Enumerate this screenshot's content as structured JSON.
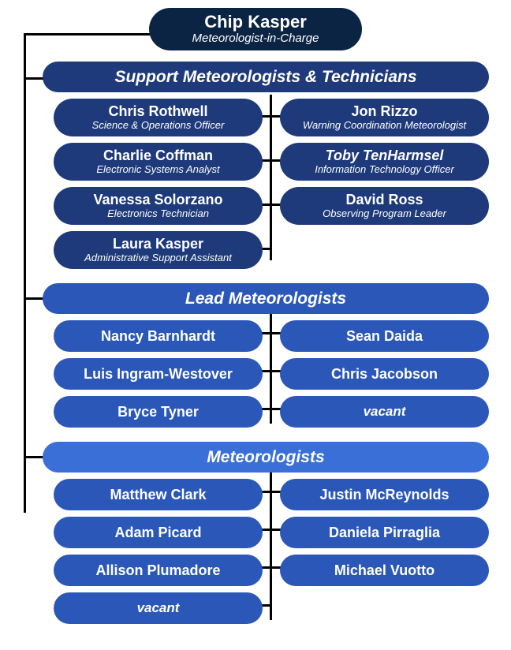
{
  "colors": {
    "top": "#0b2444",
    "section1_header": "#1e3a7a",
    "section1_cell": "#1e3a7a",
    "section2_header": "#2b58b8",
    "section2_cell": "#2b58b8",
    "section3_header": "#3a6fd8",
    "section3_cell": "#2b58b8"
  },
  "top": {
    "name": "Chip Kasper",
    "title": "Meteorologist-in-Charge"
  },
  "section1": {
    "header": "Support Meteorologists & Technicians",
    "cells": [
      {
        "name": "Chris Rothwell",
        "title": "Science & Operations Officer"
      },
      {
        "name": "Jon Rizzo",
        "title": "Warning Coordination Meteorologist"
      },
      {
        "name": "Charlie Coffman",
        "title": "Electronic Systems Analyst"
      },
      {
        "name": "Toby TenHarmsel",
        "title": "Information Technology Officer",
        "name_italic": true
      },
      {
        "name": "Vanessa Solorzano",
        "title": "Electronics Technician"
      },
      {
        "name": "David Ross",
        "title": "Observing Program Leader"
      },
      {
        "name": "Laura Kasper",
        "title": "Administrative Support Assistant"
      }
    ]
  },
  "section2": {
    "header": "Lead Meteorologists",
    "cells": [
      {
        "name": "Nancy Barnhardt"
      },
      {
        "name": "Sean Daida"
      },
      {
        "name": "Luis Ingram-Westover"
      },
      {
        "name": "Chris Jacobson"
      },
      {
        "name": "Bryce Tyner"
      },
      {
        "name": "vacant",
        "vacant": true
      }
    ]
  },
  "section3": {
    "header": "Meteorologists",
    "cells": [
      {
        "name": "Matthew Clark"
      },
      {
        "name": "Justin McReynolds"
      },
      {
        "name": "Adam Picard"
      },
      {
        "name": "Daniela Pirraglia"
      },
      {
        "name": "Allison Plumadore"
      },
      {
        "name": "Michael Vuotto"
      },
      {
        "name": "vacant",
        "vacant": true
      }
    ]
  }
}
